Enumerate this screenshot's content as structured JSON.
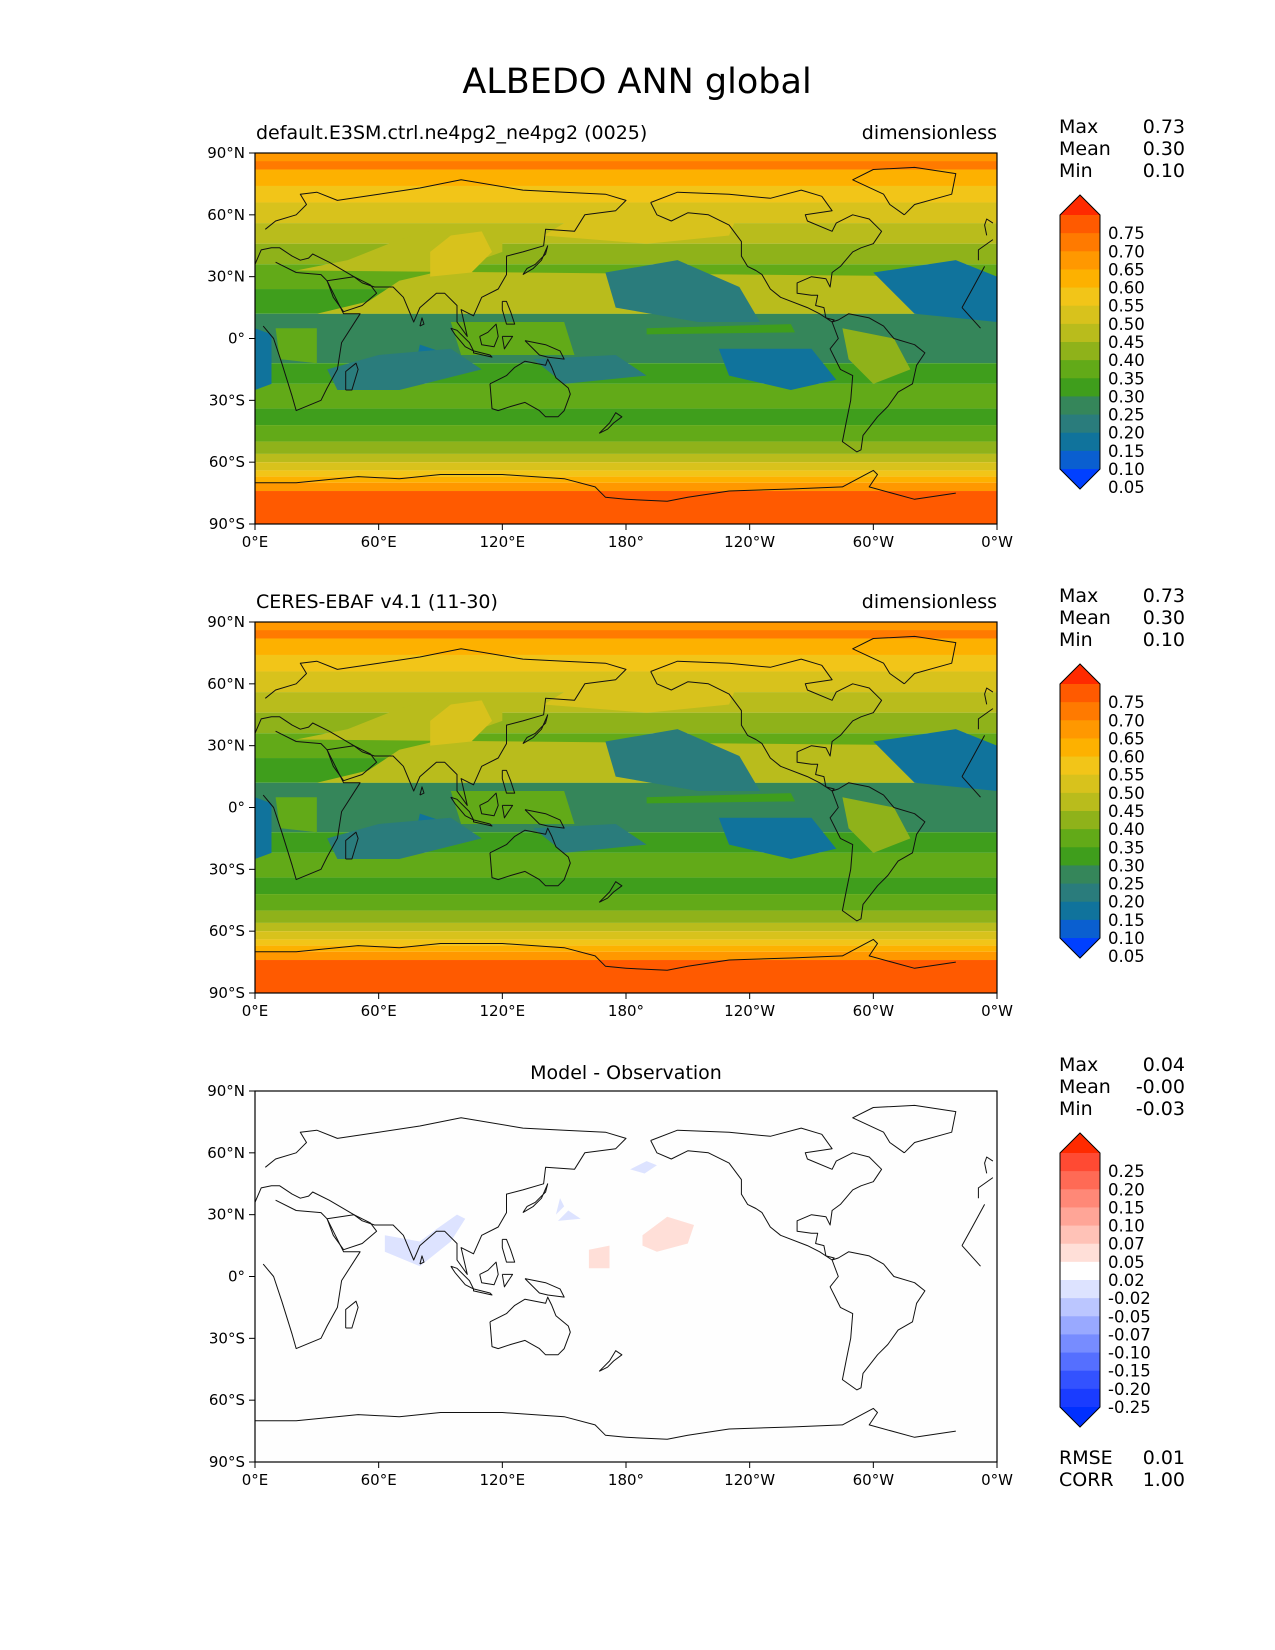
{
  "figure": {
    "title": "ALBEDO ANN global"
  },
  "panels": [
    {
      "id": "model",
      "title": "default.E3SM.ctrl.ne4pg2_ne4pg2 (0025)",
      "title_align": "left",
      "units": "dimensionless",
      "stats": [
        {
          "label": "Max",
          "value": "0.73"
        },
        {
          "label": "Mean",
          "value": "0.30"
        },
        {
          "label": "Min",
          "value": "0.10"
        }
      ],
      "colorbar": "albedo"
    },
    {
      "id": "obs",
      "title": "CERES-EBAF v4.1 (11-30)",
      "title_align": "left",
      "units": "dimensionless",
      "stats": [
        {
          "label": "Max",
          "value": "0.73"
        },
        {
          "label": "Mean",
          "value": "0.30"
        },
        {
          "label": "Min",
          "value": "0.10"
        }
      ],
      "colorbar": "albedo"
    },
    {
      "id": "diff",
      "title": "Model - Observation",
      "title_align": "center",
      "units": "",
      "stats": [
        {
          "label": "Max",
          "value": "0.04"
        },
        {
          "label": "Mean",
          "value": "-0.00"
        },
        {
          "label": "Min",
          "value": "-0.03"
        }
      ],
      "extra_stats": [
        {
          "label": "RMSE",
          "value": "0.01"
        },
        {
          "label": "CORR",
          "value": "1.00"
        }
      ],
      "colorbar": "diff"
    }
  ],
  "axes": {
    "x_ticks": [
      "0°E",
      "60°E",
      "120°E",
      "180°",
      "120°W",
      "60°W",
      "0°W"
    ],
    "y_ticks": [
      "90°N",
      "60°N",
      "30°N",
      "0°",
      "30°S",
      "60°S",
      "90°S"
    ]
  },
  "colorbars": {
    "albedo": {
      "labels": [
        "0.75",
        "0.70",
        "0.65",
        "0.60",
        "0.55",
        "0.50",
        "0.45",
        "0.40",
        "0.35",
        "0.30",
        "0.25",
        "0.20",
        "0.15",
        "0.10",
        "0.05"
      ],
      "colors_top_to_bottom": [
        "#ff2a00",
        "#ff5a00",
        "#ff7a00",
        "#ff9800",
        "#fdb100",
        "#f2c518",
        "#d8c21c",
        "#b9bc1c",
        "#8fb21a",
        "#62aa18",
        "#3f9e1c",
        "#35865a",
        "#2a7c7c",
        "#10739c",
        "#0a5fd0",
        "#0040ff"
      ]
    },
    "diff": {
      "labels": [
        "0.25",
        "0.20",
        "0.15",
        "0.10",
        "0.07",
        "0.05",
        "0.02",
        "-0.02",
        "-0.05",
        "-0.07",
        "-0.10",
        "-0.15",
        "-0.20",
        "-0.25"
      ],
      "colors_top_to_bottom": [
        "#ff2a00",
        "#ff4a33",
        "#ff6a55",
        "#ff8877",
        "#ffa597",
        "#ffc2b7",
        "#ffdfd8",
        "#ffffff",
        "#dde3ff",
        "#bbc6ff",
        "#99a9ff",
        "#778cff",
        "#556fff",
        "#3352ff",
        "#1a3cff",
        "#0030ff"
      ]
    }
  },
  "chart_data": [
    {
      "type": "heatmap",
      "title": "default.E3SM.ctrl.ne4pg2_ne4pg2 (0025)",
      "units": "dimensionless",
      "xlim": [
        0,
        360
      ],
      "ylim": [
        -90,
        90
      ],
      "stats": {
        "max": 0.73,
        "mean": 0.3,
        "min": 0.1
      },
      "colorbar_levels": [
        0.05,
        0.1,
        0.15,
        0.2,
        0.25,
        0.3,
        0.35,
        0.4,
        0.45,
        0.5,
        0.55,
        0.6,
        0.65,
        0.7,
        0.75
      ]
    },
    {
      "type": "heatmap",
      "title": "CERES-EBAF v4.1 (11-30)",
      "units": "dimensionless",
      "xlim": [
        0,
        360
      ],
      "ylim": [
        -90,
        90
      ],
      "stats": {
        "max": 0.73,
        "mean": 0.3,
        "min": 0.1
      },
      "colorbar_levels": [
        0.05,
        0.1,
        0.15,
        0.2,
        0.25,
        0.3,
        0.35,
        0.4,
        0.45,
        0.5,
        0.55,
        0.6,
        0.65,
        0.7,
        0.75
      ]
    },
    {
      "type": "heatmap",
      "title": "Model - Observation",
      "xlim": [
        0,
        360
      ],
      "ylim": [
        -90,
        90
      ],
      "stats": {
        "max": 0.04,
        "mean": -0.0,
        "min": -0.03,
        "rmse": 0.01,
        "corr": 1.0
      },
      "colorbar_levels": [
        -0.25,
        -0.2,
        -0.15,
        -0.1,
        -0.07,
        -0.05,
        -0.02,
        0.02,
        0.05,
        0.07,
        0.1,
        0.15,
        0.2,
        0.25
      ]
    }
  ]
}
